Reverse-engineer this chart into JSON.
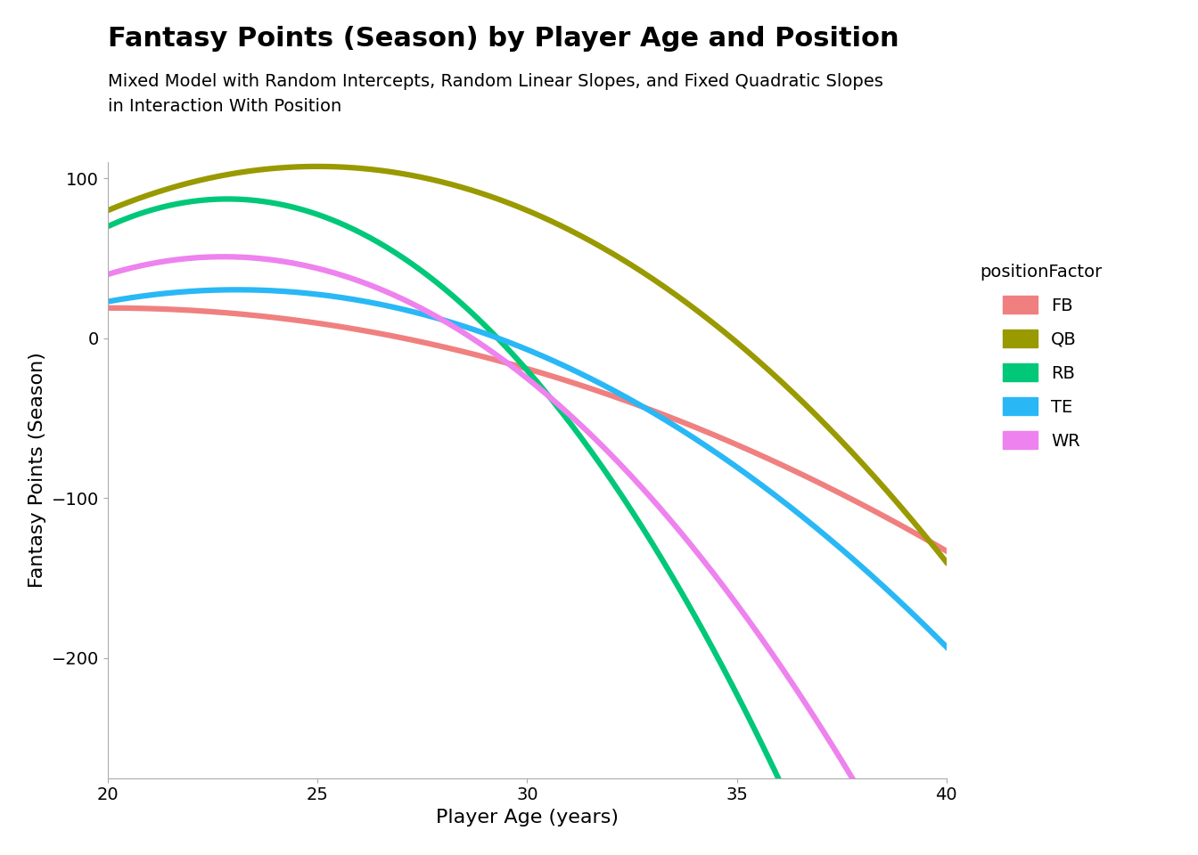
{
  "title": "Fantasy Points (Season) by Player Age and Position",
  "subtitle": "Mixed Model with Random Intercepts, Random Linear Slopes, and Fixed Quadratic Slopes\nin Interaction With Position",
  "xlabel": "Player Age (years)",
  "ylabel": "Fantasy Points (Season)",
  "xlim": [
    20,
    40
  ],
  "ylim": [
    -275,
    110
  ],
  "xticks": [
    20,
    25,
    30,
    35,
    40
  ],
  "yticks": [
    -200,
    -100,
    0,
    100
  ],
  "background_color": "#ffffff",
  "positions": [
    "FB",
    "QB",
    "RB",
    "TE",
    "WR"
  ],
  "colors": {
    "FB": "#F08080",
    "QB": "#999900",
    "RB": "#00C878",
    "TE": "#29B8F5",
    "WR": "#EE82EE"
  },
  "coefficients": {
    "FB": [
      -0.38,
      15.2,
      -133.0
    ],
    "QB": [
      -1.1,
      55.0,
      -580.0
    ],
    "RB": [
      -2.1,
      96.0,
      -1010.0
    ],
    "TE": [
      -0.78,
      36.0,
      -385.0
    ],
    "WR": [
      -1.45,
      66.0,
      -700.0
    ]
  },
  "line_width": 4.5,
  "title_fontsize": 22,
  "subtitle_fontsize": 14,
  "axis_label_fontsize": 16,
  "tick_fontsize": 14,
  "legend_fontsize": 14,
  "legend_title_fontsize": 14
}
